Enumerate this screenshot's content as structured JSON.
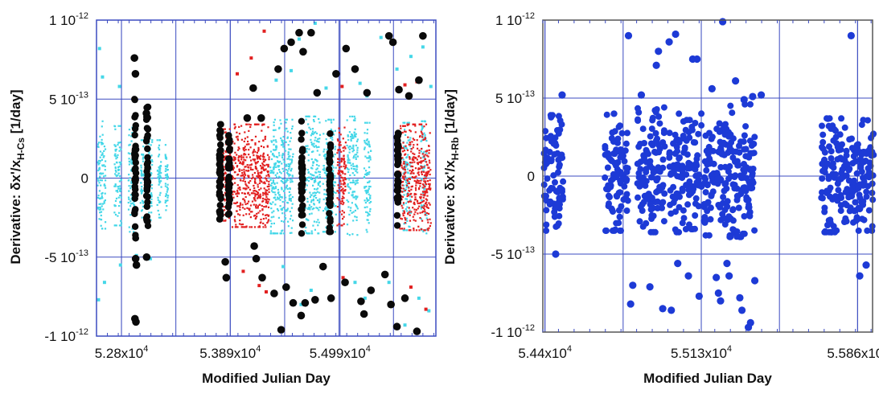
{
  "chart_data": [
    {
      "type": "scatter",
      "title": "",
      "xlabel": "Modified Julian Day",
      "ylabel": {
        "prefix": "Derivative:  δx'/x",
        "subscript": "H-Cs",
        "suffix": "[1/day]"
      },
      "xlim": [
        52550,
        55950
      ],
      "ylim": [
        -1e-12,
        1e-12
      ],
      "xticks": [
        {
          "value": 52800,
          "label": "5.28x10"
        },
        {
          "value": 53890,
          "label": "5.389x10"
        },
        {
          "value": 54990,
          "label": "5.499x10"
        }
      ],
      "xtick_exponent": "4",
      "yticks": [
        {
          "value": 1e-12,
          "mant": "1 10",
          "exp": "-12"
        },
        {
          "value": 5e-13,
          "mant": "5 10",
          "exp": "-13"
        },
        {
          "value": 0,
          "mant": "0",
          "exp": ""
        },
        {
          "value": -5e-13,
          "mant": "-5 10",
          "exp": "-13"
        },
        {
          "value": -1e-12,
          "mant": "-1 10",
          "exp": "-12"
        }
      ],
      "grid": true,
      "series": [
        {
          "color": "#45d7e8",
          "marker": "square",
          "segments": [
            [
              52560,
              52640,
              -3.2e-13,
              3.6e-13
            ],
            [
              52730,
              52800,
              -3e-13,
              3.3e-13
            ],
            [
              52870,
              52930,
              -3.4e-13,
              3.2e-13
            ],
            [
              52990,
              53020,
              -2.5e-13,
              2.4e-13
            ],
            [
              53070,
              53110,
              -3e-13,
              2.5e-13
            ],
            [
              53160,
              53200,
              -2.5e-13,
              2.4e-13
            ],
            [
              53240,
              53270,
              -2.3e-13,
              2.1e-13
            ],
            [
              54290,
              54520,
              -3.5e-13,
              3.7e-13
            ],
            [
              54640,
              54790,
              -3.5e-13,
              3.9e-13
            ],
            [
              54820,
              54950,
              -3.4e-13,
              3.7e-13
            ],
            [
              55060,
              55170,
              -3.6e-13,
              3.9e-13
            ],
            [
              55230,
              55300,
              -3.5e-13,
              3.5e-13
            ],
            [
              55620,
              55700,
              -3.3e-13,
              3.5e-13
            ],
            [
              55800,
              55860,
              -3.5e-13,
              3.6e-13
            ]
          ],
          "outliers": [
            [
              52570,
              -7.7e-13
            ],
            [
              52580,
              8.2e-13
            ],
            [
              52610,
              6.4e-13
            ],
            [
              52630,
              -6.6e-13
            ],
            [
              52780,
              5.8e-13
            ],
            [
              52790,
              -5.5e-13
            ],
            [
              52950,
              -4.9e-13
            ],
            [
              53090,
              -5.1e-13
            ],
            [
              54350,
              6.2e-13
            ],
            [
              54420,
              -5.6e-13
            ],
            [
              54500,
              6.8e-13
            ],
            [
              54580,
              8.8e-13
            ],
            [
              54600,
              -8e-13
            ],
            [
              54700,
              -7.1e-13
            ],
            [
              54740,
              9.8e-13
            ],
            [
              54850,
              5.7e-13
            ],
            [
              54920,
              -7.6e-13
            ],
            [
              55140,
              -6.6e-13
            ],
            [
              55190,
              6e-13
            ],
            [
              55240,
              -7.6e-13
            ],
            [
              55260,
              5.2e-13
            ],
            [
              55400,
              8.9e-13
            ],
            [
              55480,
              -6.6e-13
            ],
            [
              55560,
              6.9e-13
            ],
            [
              55640,
              -9.3e-13
            ],
            [
              55700,
              7.7e-13
            ],
            [
              55780,
              -7.6e-13
            ],
            [
              55820,
              8.3e-13
            ],
            [
              55880,
              -8.4e-13
            ],
            [
              55900,
              5.8e-13
            ]
          ]
        },
        {
          "color": "#e22020",
          "marker": "square",
          "segments": [
            [
              53810,
              53900,
              -2.7e-13,
              3.1e-13
            ],
            [
              53910,
              54280,
              -3.1e-13,
              3.4e-13
            ],
            [
              54960,
              55050,
              -3e-13,
              3.2e-13
            ],
            [
              55580,
              55650,
              -3.2e-13,
              3.3e-13
            ],
            [
              55660,
              55900,
              -3.3e-13,
              3.4e-13
            ]
          ],
          "outliers": [
            [
              53960,
              6.6e-13
            ],
            [
              54020,
              -5.9e-13
            ],
            [
              54100,
              7.6e-13
            ],
            [
              54180,
              -6.8e-13
            ],
            [
              54230,
              9.3e-13
            ],
            [
              54250,
              -7.2e-13
            ],
            [
              55010,
              5.8e-13
            ],
            [
              55020,
              -6.3e-13
            ],
            [
              55640,
              5.9e-13
            ],
            [
              55700,
              -6.9e-13
            ],
            [
              55760,
              6.1e-13
            ],
            [
              55850,
              -8.3e-13
            ]
          ]
        },
        {
          "color": "#0a0a0a",
          "marker": "circle",
          "segments": [
            [
              52930,
              52935,
              -3.8e-13,
              5e-13
            ],
            [
              53050,
              53055,
              -3.4e-13,
              4.5e-13
            ],
            [
              53780,
              53785,
              -2.6e-13,
              3.4e-13
            ],
            [
              53870,
              53875,
              -2.3e-13,
              2.7e-13
            ],
            [
              54600,
              54605,
              -3.5e-13,
              3.6e-13
            ],
            [
              54880,
              54885,
              -3.4e-13,
              3.6e-13
            ],
            [
              55560,
              55565,
              -3e-13,
              3.4e-13
            ]
          ],
          "outliers": [
            [
              52930,
              7.6e-13
            ],
            [
              52935,
              -8.9e-13
            ],
            [
              52940,
              6.6e-13
            ],
            [
              52942,
              -5.1e-13
            ],
            [
              52945,
              -9.1e-13
            ],
            [
              52950,
              -5.5e-13
            ],
            [
              53050,
              4.1e-13
            ],
            [
              53052,
              -5e-13
            ],
            [
              53840,
              -5.3e-13
            ],
            [
              53850,
              -6.3e-13
            ],
            [
              54060,
              3.8e-13
            ],
            [
              54120,
              5.7e-13
            ],
            [
              54130,
              -4.3e-13
            ],
            [
              54150,
              -5.1e-13
            ],
            [
              54200,
              3.8e-13
            ],
            [
              54210,
              -6.3e-13
            ],
            [
              54330,
              -7.3e-13
            ],
            [
              54370,
              6.9e-13
            ],
            [
              54400,
              -9.6e-13
            ],
            [
              54430,
              8.2e-13
            ],
            [
              54450,
              -6.9e-13
            ],
            [
              54500,
              8.6e-13
            ],
            [
              54520,
              -7.9e-13
            ],
            [
              54580,
              9.2e-13
            ],
            [
              54600,
              -8.7e-13
            ],
            [
              54620,
              8e-13
            ],
            [
              54640,
              -7.9e-13
            ],
            [
              54700,
              9.2e-13
            ],
            [
              54740,
              -7.7e-13
            ],
            [
              54760,
              5.4e-13
            ],
            [
              54820,
              -5.6e-13
            ],
            [
              54900,
              -7.6e-13
            ],
            [
              54950,
              6.6e-13
            ],
            [
              55040,
              -6.6e-13
            ],
            [
              55050,
              8.2e-13
            ],
            [
              55140,
              6.9e-13
            ],
            [
              55200,
              -7.8e-13
            ],
            [
              55230,
              -8.6e-13
            ],
            [
              55260,
              5.4e-13
            ],
            [
              55300,
              -7.1e-13
            ],
            [
              55440,
              -6.1e-13
            ],
            [
              55480,
              9e-13
            ],
            [
              55500,
              -8e-13
            ],
            [
              55520,
              8.6e-13
            ],
            [
              55560,
              -9.4e-13
            ],
            [
              55580,
              5.6e-13
            ],
            [
              55640,
              -7.6e-13
            ],
            [
              55680,
              5.2e-13
            ],
            [
              55760,
              -9.7e-13
            ],
            [
              55780,
              6.2e-13
            ],
            [
              55820,
              9e-13
            ]
          ]
        }
      ]
    },
    {
      "type": "scatter",
      "title": "",
      "xlabel": "Modified Julian Day",
      "ylabel": {
        "prefix": "Derivative:  δx'/x",
        "subscript": "H-Rb",
        "suffix": "[1/day]"
      },
      "xlim": [
        54390,
        55930
      ],
      "ylim": [
        -1e-12,
        1e-12
      ],
      "xticks": [
        {
          "value": 54400,
          "label": "5.44x10"
        },
        {
          "value": 55130,
          "label": "5.513x10"
        },
        {
          "value": 55860,
          "label": "5.586x10"
        }
      ],
      "xtick_exponent": "4",
      "yticks": [
        {
          "value": 1e-12,
          "mant": "1 10",
          "exp": "-12"
        },
        {
          "value": 5e-13,
          "mant": "5 10",
          "exp": "-13"
        },
        {
          "value": 0,
          "mant": "0",
          "exp": ""
        },
        {
          "value": -5e-13,
          "mant": "-5 10",
          "exp": "-13"
        },
        {
          "value": -1e-12,
          "mant": "-1 10",
          "exp": "-12"
        }
      ],
      "grid": true,
      "series": [
        {
          "color": "#1d3ad6",
          "marker": "circle",
          "segments": [
            [
              54395,
              54485,
              -3.5e-13,
              3.9e-13
            ],
            [
              54680,
              54790,
              -3.5e-13,
              4e-13
            ],
            [
              54830,
              54960,
              -3.6e-13,
              4.4e-13
            ],
            [
              54980,
              55030,
              -3.6e-13,
              4e-13
            ],
            [
              55040,
              55120,
              -3.4e-13,
              3.6e-13
            ],
            [
              55130,
              55190,
              -3.8e-13,
              4.2e-13
            ],
            [
              55200,
              55320,
              -3.9e-13,
              4.7e-13
            ],
            [
              55320,
              55380,
              -3.7e-13,
              4.6e-13
            ],
            [
              55690,
              55860,
              -3.6e-13,
              3.7e-13
            ],
            [
              55860,
              55935,
              -3.5e-13,
              3.6e-13
            ]
          ],
          "outliers": [
            [
              54450,
              -5e-13
            ],
            [
              54480,
              5.2e-13
            ],
            [
              54790,
              9e-13
            ],
            [
              54800,
              -8.2e-13
            ],
            [
              54810,
              -7e-13
            ],
            [
              54850,
              5.2e-13
            ],
            [
              54890,
              -7.1e-13
            ],
            [
              54920,
              7.1e-13
            ],
            [
              54930,
              8e-13
            ],
            [
              54950,
              -8.5e-13
            ],
            [
              54980,
              8.6e-13
            ],
            [
              54990,
              -8.6e-13
            ],
            [
              55010,
              9.1e-13
            ],
            [
              55020,
              -5.6e-13
            ],
            [
              55070,
              -6.4e-13
            ],
            [
              55090,
              7.5e-13
            ],
            [
              55110,
              7.5e-13
            ],
            [
              55120,
              -7.7e-13
            ],
            [
              55180,
              5.6e-13
            ],
            [
              55200,
              -6.5e-13
            ],
            [
              55210,
              -7.5e-13
            ],
            [
              55220,
              -8e-13
            ],
            [
              55230,
              9.9e-13
            ],
            [
              55250,
              -5.6e-13
            ],
            [
              55260,
              -6.4e-13
            ],
            [
              55290,
              6.1e-13
            ],
            [
              55310,
              -7.8e-13
            ],
            [
              55320,
              -8.6e-13
            ],
            [
              55330,
              4.9e-13
            ],
            [
              55350,
              -9.7e-13
            ],
            [
              55360,
              -9.4e-13
            ],
            [
              55370,
              5.1e-13
            ],
            [
              55380,
              -6.7e-13
            ],
            [
              55410,
              5.2e-13
            ],
            [
              55830,
              9e-13
            ],
            [
              55870,
              -6.4e-13
            ],
            [
              55900,
              -5.7e-13
            ]
          ]
        }
      ]
    }
  ]
}
